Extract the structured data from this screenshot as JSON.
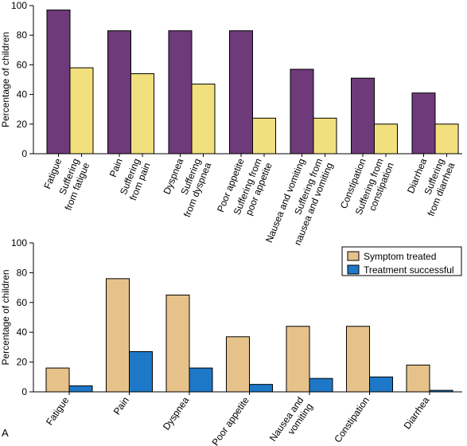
{
  "panel_label": "A",
  "colors": {
    "purple": "#6e3a7a",
    "yellow": "#f2e07e",
    "tan": "#e6c28a",
    "blue": "#1e78c8",
    "stroke": "#000000"
  },
  "chart_data": [
    {
      "type": "bar",
      "ylabel": "Percentage of children",
      "ylim": [
        0,
        100
      ],
      "yticks": [
        0,
        20,
        40,
        60,
        80,
        100
      ],
      "grid": false,
      "groups": [
        {
          "bars": [
            {
              "label": "Fatigue",
              "value": 97,
              "color": "purple"
            },
            {
              "label": "Suffering\nfrom fatigue",
              "value": 58,
              "color": "yellow"
            }
          ]
        },
        {
          "bars": [
            {
              "label": "Pain",
              "value": 83,
              "color": "purple"
            },
            {
              "label": "Suffering\nfrom pain",
              "value": 54,
              "color": "yellow"
            }
          ]
        },
        {
          "bars": [
            {
              "label": "Dyspnea",
              "value": 83,
              "color": "purple"
            },
            {
              "label": "Suffering\nfrom dyspnea",
              "value": 47,
              "color": "yellow"
            }
          ]
        },
        {
          "bars": [
            {
              "label": "Poor appetite",
              "value": 83,
              "color": "purple"
            },
            {
              "label": "Suffering from\npoor appetite",
              "value": 24,
              "color": "yellow"
            }
          ]
        },
        {
          "bars": [
            {
              "label": "Nausea and vomiting",
              "value": 57,
              "color": "purple"
            },
            {
              "label": "Suffering from\nnausea and vomiting",
              "value": 24,
              "color": "yellow"
            }
          ]
        },
        {
          "bars": [
            {
              "label": "Constipation",
              "value": 51,
              "color": "purple"
            },
            {
              "label": "Suffering from\nconstipation",
              "value": 20,
              "color": "yellow"
            }
          ]
        },
        {
          "bars": [
            {
              "label": "Diarrhea",
              "value": 41,
              "color": "purple"
            },
            {
              "label": "Suffering\nfrom diarrhea",
              "value": 20,
              "color": "yellow"
            }
          ]
        }
      ]
    },
    {
      "type": "bar",
      "ylabel": "Percentage of children",
      "ylim": [
        0,
        100
      ],
      "yticks": [
        0,
        20,
        40,
        60,
        80,
        100
      ],
      "grid": false,
      "legend_position": "top-right",
      "categories": [
        "Fatigue",
        "Pain",
        "Dyspnea",
        "Poor appetite",
        "Nausea and\nvomiting",
        "Constipation",
        "Diarrhea"
      ],
      "series": [
        {
          "name": "Symptom treated",
          "color": "tan",
          "values": [
            16,
            76,
            65,
            37,
            44,
            44,
            18
          ]
        },
        {
          "name": "Treatment successful",
          "color": "blue",
          "values": [
            4,
            27,
            16,
            5,
            9,
            10,
            1
          ]
        }
      ]
    }
  ]
}
